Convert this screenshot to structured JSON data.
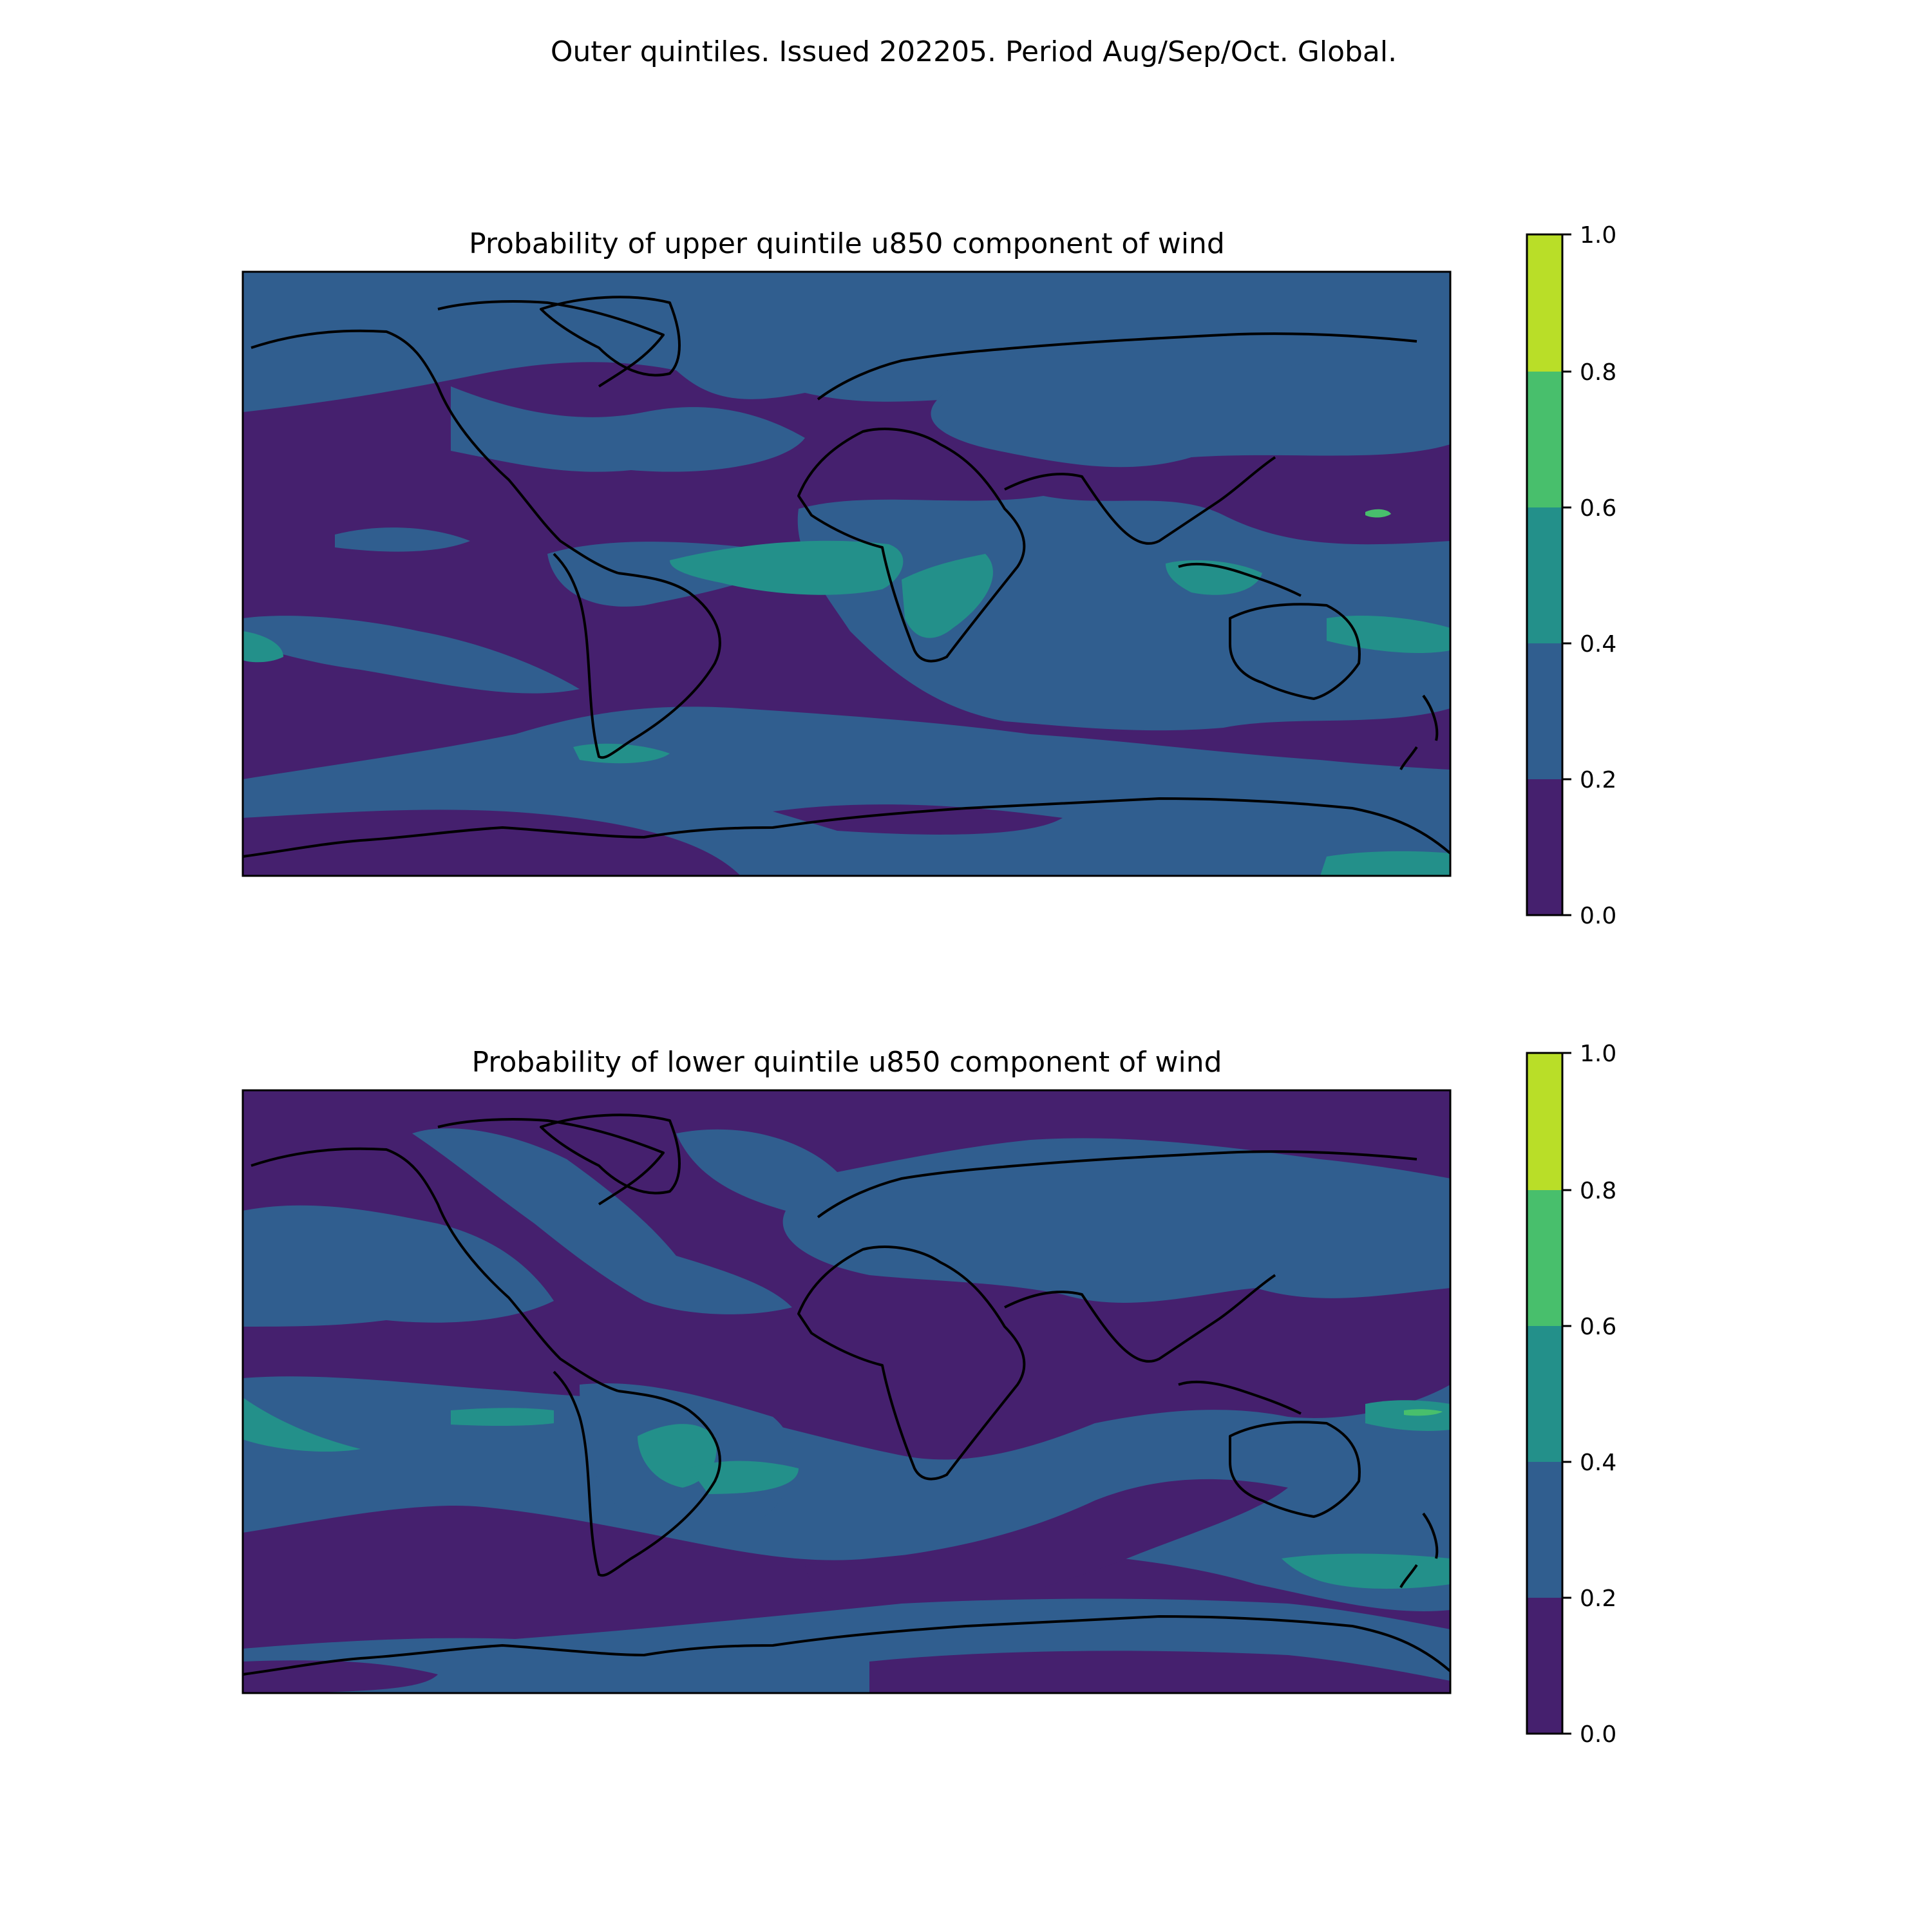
{
  "suptitle": "Outer quintiles. Issued 202205. Period Aug/Sep/Oct. Global.",
  "colors": {
    "levels": [
      "#440154",
      "#3b528b",
      "#21918c",
      "#5ec962",
      "#fde725"
    ],
    "rendered_levels": [
      "#45206e",
      "#305e8f",
      "#23908a",
      "#48bf6c",
      "#b9de28"
    ],
    "coastline": "#000000"
  },
  "chart_data": [
    {
      "type": "filled-contour-map",
      "title": "Probability of upper quintile u850 component of wind",
      "projection": "plate-carree-global",
      "colorbar": {
        "levels": [
          0.0,
          0.2,
          0.4,
          0.6,
          0.8,
          1.0
        ],
        "tick_labels": [
          "0.0",
          "0.2",
          "0.4",
          "0.6",
          "0.8",
          "1.0"
        ]
      },
      "dominant_classes": [
        "0.0-0.2",
        "0.2-0.4"
      ],
      "notable_high_regions": [
        "tropical Atlantic / West Africa (0.4-0.6)",
        "Maritime Continent (0.4-0.6)",
        "south of South America (0.4-0.6)",
        "southern Africa (0.4-0.6)"
      ]
    },
    {
      "type": "filled-contour-map",
      "title": "Probability of lower quintile u850 component of wind",
      "projection": "plate-carree-global",
      "colorbar": {
        "levels": [
          0.0,
          0.2,
          0.4,
          0.6,
          0.8,
          1.0
        ],
        "tick_labels": [
          "0.0",
          "0.2",
          "0.4",
          "0.6",
          "0.8",
          "1.0"
        ]
      },
      "dominant_classes": [
        "0.0-0.2",
        "0.2-0.4"
      ],
      "notable_high_regions": [
        "Brazil / South Atlantic (0.4-0.6)",
        "central Pacific (0.4-0.6)",
        "tropical western Pacific (0.6-0.8)",
        "South Pacific east of Australia (0.4-0.6)"
      ]
    }
  ]
}
